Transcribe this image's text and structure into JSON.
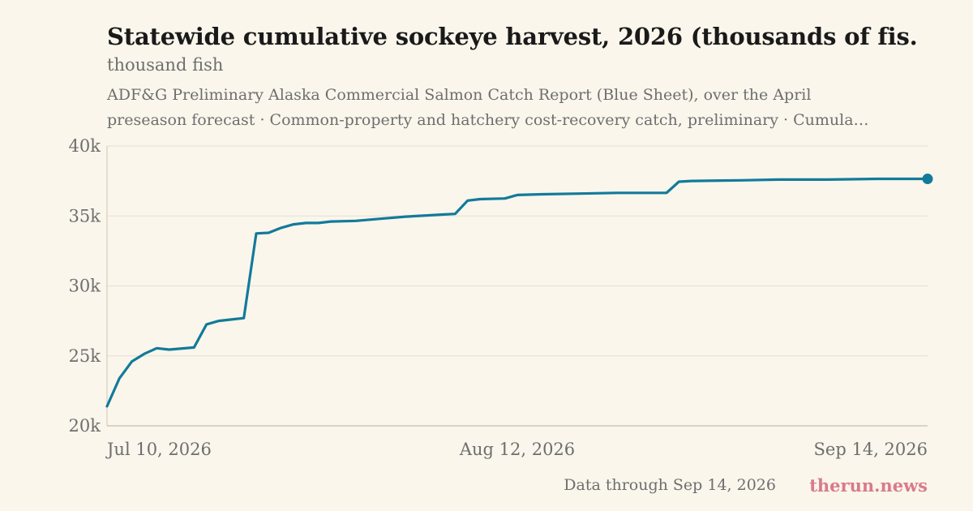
{
  "header": {
    "title": "Statewide cumulative sockeye harvest, 2026 (thousands of fis…",
    "unit_label": "thousand fish",
    "subtitle_line1": "ADF&G Preliminary Alaska Commercial Salmon Catch Report (Blue Sheet), over the April",
    "subtitle_line2": "preseason forecast · Common-property and hatchery cost-recovery catch, preliminary · Cumula…"
  },
  "footer": {
    "note": "Data through Sep 14, 2026",
    "brand": "therun.news"
  },
  "colors": {
    "line": "#137a9a",
    "grid": "#e4dfd2",
    "axis": "#cfc7b5",
    "tick_text": "#6e6e6e",
    "background": "#faf6ec"
  },
  "chart_data": {
    "type": "line",
    "ylim": [
      20000,
      40000
    ],
    "y_ticks": [
      20000,
      25000,
      30000,
      35000,
      40000
    ],
    "y_tick_labels": [
      "20k",
      "25k",
      "30k",
      "35k",
      "40k"
    ],
    "x_range": [
      "2026-07-10",
      "2026-09-14"
    ],
    "x_ticks": [
      "2026-07-10",
      "2026-08-12",
      "2026-09-14"
    ],
    "x_tick_labels": [
      "Jul 10, 2026",
      "Aug 12, 2026",
      "Sep 14, 2026"
    ],
    "grid": "horizontal",
    "end_marker": true,
    "series": [
      {
        "name": "",
        "points": [
          [
            "2026-07-10",
            21400
          ],
          [
            "2026-07-11",
            23400
          ],
          [
            "2026-07-12",
            24600
          ],
          [
            "2026-07-13",
            25150
          ],
          [
            "2026-07-14",
            25550
          ],
          [
            "2026-07-15",
            25450
          ],
          [
            "2026-07-17",
            25600
          ],
          [
            "2026-07-18",
            27250
          ],
          [
            "2026-07-19",
            27500
          ],
          [
            "2026-07-20",
            27600
          ],
          [
            "2026-07-21",
            27700
          ],
          [
            "2026-07-22",
            33750
          ],
          [
            "2026-07-23",
            33800
          ],
          [
            "2026-07-24",
            34150
          ],
          [
            "2026-07-25",
            34400
          ],
          [
            "2026-07-26",
            34500
          ],
          [
            "2026-07-27",
            34500
          ],
          [
            "2026-07-28",
            34600
          ],
          [
            "2026-07-30",
            34650
          ],
          [
            "2026-08-01",
            34800
          ],
          [
            "2026-08-03",
            34950
          ],
          [
            "2026-08-05",
            35050
          ],
          [
            "2026-08-06",
            35100
          ],
          [
            "2026-08-07",
            35150
          ],
          [
            "2026-08-08",
            36100
          ],
          [
            "2026-08-09",
            36200
          ],
          [
            "2026-08-11",
            36250
          ],
          [
            "2026-08-12",
            36500
          ],
          [
            "2026-08-14",
            36550
          ],
          [
            "2026-08-17",
            36600
          ],
          [
            "2026-08-20",
            36650
          ],
          [
            "2026-08-23",
            36650
          ],
          [
            "2026-08-24",
            36650
          ],
          [
            "2026-08-25",
            37450
          ],
          [
            "2026-08-26",
            37500
          ],
          [
            "2026-08-30",
            37550
          ],
          [
            "2026-09-02",
            37600
          ],
          [
            "2026-09-06",
            37600
          ],
          [
            "2026-09-10",
            37650
          ],
          [
            "2026-09-14",
            37650
          ]
        ]
      }
    ]
  }
}
